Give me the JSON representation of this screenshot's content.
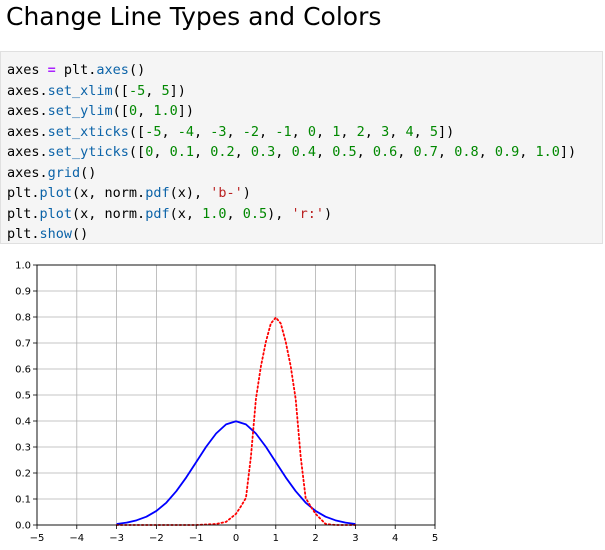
{
  "page": {
    "title": "Change Line Types and Colors"
  },
  "code_cell": {
    "lines": [
      [
        {
          "t": "axes ",
          "c": "plain"
        },
        {
          "t": "=",
          "c": "kw"
        },
        {
          "t": " plt.",
          "c": "plain"
        },
        {
          "t": "axes",
          "c": "fn"
        },
        {
          "t": "()",
          "c": "plain"
        }
      ],
      [
        {
          "t": "axes.",
          "c": "plain"
        },
        {
          "t": "set_xlim",
          "c": "fn"
        },
        {
          "t": "([",
          "c": "plain"
        },
        {
          "t": "-5",
          "c": "num"
        },
        {
          "t": ", ",
          "c": "plain"
        },
        {
          "t": "5",
          "c": "num"
        },
        {
          "t": "])",
          "c": "plain"
        }
      ],
      [
        {
          "t": "axes.",
          "c": "plain"
        },
        {
          "t": "set_ylim",
          "c": "fn"
        },
        {
          "t": "([",
          "c": "plain"
        },
        {
          "t": "0",
          "c": "num"
        },
        {
          "t": ", ",
          "c": "plain"
        },
        {
          "t": "1.0",
          "c": "num"
        },
        {
          "t": "])",
          "c": "plain"
        }
      ],
      [
        {
          "t": "axes.",
          "c": "plain"
        },
        {
          "t": "set_xticks",
          "c": "fn"
        },
        {
          "t": "([",
          "c": "plain"
        },
        {
          "t": "-5",
          "c": "num"
        },
        {
          "t": ", ",
          "c": "plain"
        },
        {
          "t": "-4",
          "c": "num"
        },
        {
          "t": ", ",
          "c": "plain"
        },
        {
          "t": "-3",
          "c": "num"
        },
        {
          "t": ", ",
          "c": "plain"
        },
        {
          "t": "-2",
          "c": "num"
        },
        {
          "t": ", ",
          "c": "plain"
        },
        {
          "t": "-1",
          "c": "num"
        },
        {
          "t": ", ",
          "c": "plain"
        },
        {
          "t": "0",
          "c": "num"
        },
        {
          "t": ", ",
          "c": "plain"
        },
        {
          "t": "1",
          "c": "num"
        },
        {
          "t": ", ",
          "c": "plain"
        },
        {
          "t": "2",
          "c": "num"
        },
        {
          "t": ", ",
          "c": "plain"
        },
        {
          "t": "3",
          "c": "num"
        },
        {
          "t": ", ",
          "c": "plain"
        },
        {
          "t": "4",
          "c": "num"
        },
        {
          "t": ", ",
          "c": "plain"
        },
        {
          "t": "5",
          "c": "num"
        },
        {
          "t": "])",
          "c": "plain"
        }
      ],
      [
        {
          "t": "axes.",
          "c": "plain"
        },
        {
          "t": "set_yticks",
          "c": "fn"
        },
        {
          "t": "([",
          "c": "plain"
        },
        {
          "t": "0",
          "c": "num"
        },
        {
          "t": ", ",
          "c": "plain"
        },
        {
          "t": "0.1",
          "c": "num"
        },
        {
          "t": ", ",
          "c": "plain"
        },
        {
          "t": "0.2",
          "c": "num"
        },
        {
          "t": ", ",
          "c": "plain"
        },
        {
          "t": "0.3",
          "c": "num"
        },
        {
          "t": ", ",
          "c": "plain"
        },
        {
          "t": "0.4",
          "c": "num"
        },
        {
          "t": ", ",
          "c": "plain"
        },
        {
          "t": "0.5",
          "c": "num"
        },
        {
          "t": ", ",
          "c": "plain"
        },
        {
          "t": "0.6",
          "c": "num"
        },
        {
          "t": ", ",
          "c": "plain"
        },
        {
          "t": "0.7",
          "c": "num"
        },
        {
          "t": ", ",
          "c": "plain"
        },
        {
          "t": "0.8",
          "c": "num"
        },
        {
          "t": ", ",
          "c": "plain"
        },
        {
          "t": "0.9",
          "c": "num"
        },
        {
          "t": ", ",
          "c": "plain"
        },
        {
          "t": "1.0",
          "c": "num"
        },
        {
          "t": "])",
          "c": "plain"
        }
      ],
      [
        {
          "t": "axes.",
          "c": "plain"
        },
        {
          "t": "grid",
          "c": "fn"
        },
        {
          "t": "()",
          "c": "plain"
        }
      ],
      [
        {
          "t": "plt.",
          "c": "plain"
        },
        {
          "t": "plot",
          "c": "fn"
        },
        {
          "t": "(x, norm.",
          "c": "plain"
        },
        {
          "t": "pdf",
          "c": "fn"
        },
        {
          "t": "(x), ",
          "c": "plain"
        },
        {
          "t": "'b-'",
          "c": "str"
        },
        {
          "t": ")",
          "c": "plain"
        }
      ],
      [
        {
          "t": "plt.",
          "c": "plain"
        },
        {
          "t": "plot",
          "c": "fn"
        },
        {
          "t": "(x, norm.",
          "c": "plain"
        },
        {
          "t": "pdf",
          "c": "fn"
        },
        {
          "t": "(x, ",
          "c": "plain"
        },
        {
          "t": "1.0",
          "c": "num"
        },
        {
          "t": ", ",
          "c": "plain"
        },
        {
          "t": "0.5",
          "c": "num"
        },
        {
          "t": "), ",
          "c": "plain"
        },
        {
          "t": "'r:'",
          "c": "str"
        },
        {
          "t": ")",
          "c": "plain"
        }
      ],
      [
        {
          "t": "plt.",
          "c": "plain"
        },
        {
          "t": "show",
          "c": "fn"
        },
        {
          "t": "()",
          "c": "plain"
        }
      ]
    ]
  },
  "colors": {
    "series_blue": "#0000ff",
    "series_red": "#ff0000",
    "grid": "#b0b0b0",
    "axes_frame": "#000000"
  },
  "chart_data": {
    "type": "line",
    "title": "",
    "xlabel": "",
    "ylabel": "",
    "xlim": [
      -5,
      5
    ],
    "ylim": [
      0,
      1.0
    ],
    "xticks": [
      "−5",
      "−4",
      "−3",
      "−2",
      "−1",
      "0",
      "1",
      "2",
      "3",
      "4",
      "5"
    ],
    "yticks": [
      "0.0",
      "0.1",
      "0.2",
      "0.3",
      "0.4",
      "0.5",
      "0.6",
      "0.7",
      "0.8",
      "0.9",
      "1.0"
    ],
    "grid": true,
    "series": [
      {
        "style": "solid",
        "color": "#0000ff",
        "x": [
          -3.0,
          -2.75,
          -2.5,
          -2.25,
          -2.0,
          -1.75,
          -1.5,
          -1.25,
          -1.0,
          -0.75,
          -0.5,
          -0.25,
          0.0,
          0.25,
          0.5,
          0.75,
          1.0,
          1.25,
          1.5,
          1.75,
          2.0,
          2.25,
          2.5,
          2.75,
          3.0
        ],
        "y": [
          0.004,
          0.009,
          0.018,
          0.032,
          0.054,
          0.086,
          0.13,
          0.183,
          0.242,
          0.301,
          0.352,
          0.387,
          0.399,
          0.387,
          0.352,
          0.301,
          0.242,
          0.183,
          0.13,
          0.086,
          0.054,
          0.032,
          0.018,
          0.009,
          0.004
        ]
      },
      {
        "style": "dotted",
        "color": "#ff0000",
        "x": [
          -3.0,
          -1.0,
          -0.5,
          -0.25,
          0.0,
          0.125,
          0.25,
          0.375,
          0.5,
          0.625,
          0.75,
          0.875,
          1.0,
          1.125,
          1.25,
          1.375,
          1.5,
          1.625,
          1.75,
          1.875,
          2.0,
          2.25,
          2.5,
          3.0
        ],
        "y": [
          0.0,
          0.0,
          0.004,
          0.012,
          0.043,
          0.072,
          0.104,
          0.263,
          0.484,
          0.61,
          0.704,
          0.775,
          0.798,
          0.775,
          0.704,
          0.61,
          0.484,
          0.263,
          0.104,
          0.072,
          0.043,
          0.004,
          0.0,
          0.0
        ]
      }
    ]
  }
}
